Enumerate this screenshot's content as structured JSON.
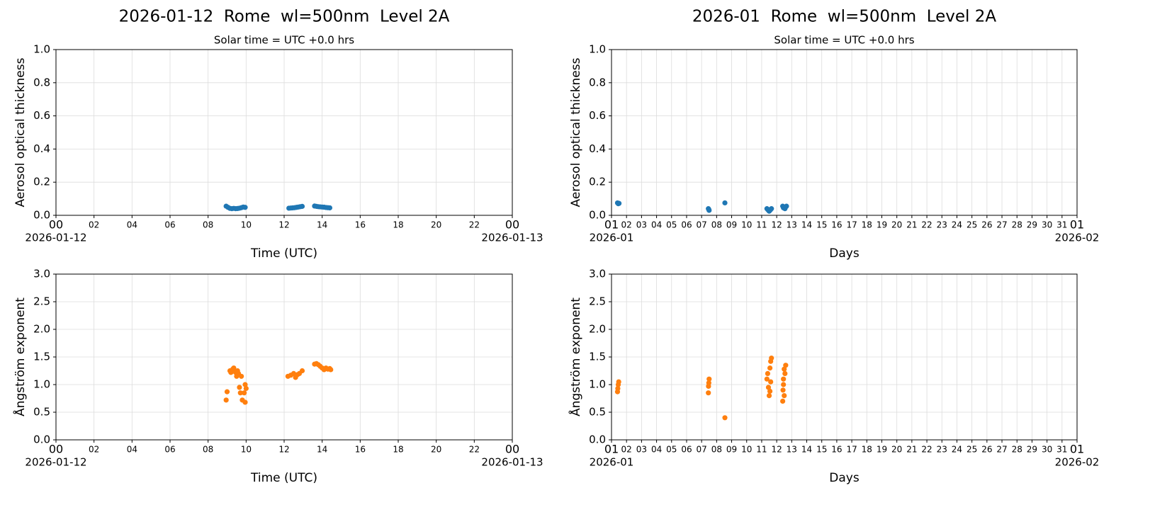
{
  "chart_data": [
    {
      "type": "scatter",
      "title": "2026-01-12  Rome  wl=500nm  Level 2A",
      "subtitle": "Solar time = UTC +0.0 hrs",
      "x_label": "Time (UTC)",
      "y_label": "Aerosol optical thickness",
      "xlim": [
        0,
        24
      ],
      "xticks": [
        {
          "value": 0,
          "label": "00"
        },
        {
          "value": 2,
          "label": "02"
        },
        {
          "value": 4,
          "label": "04"
        },
        {
          "value": 6,
          "label": "06"
        },
        {
          "value": 8,
          "label": "08"
        },
        10,
        12,
        14,
        16,
        18,
        20,
        22,
        {
          "value": 24,
          "label": "00"
        }
      ],
      "xdate_labels": [
        {
          "value": 0,
          "label": "2026-01-12"
        },
        {
          "value": 24,
          "label": "2026-01-13"
        }
      ],
      "ylim": [
        0,
        1
      ],
      "yticks": [
        {
          "value": 0,
          "label": "0.0"
        },
        0.2,
        0.4,
        0.6,
        0.8,
        {
          "value": 1,
          "label": "1.0"
        }
      ],
      "grid": true,
      "series": [
        {
          "color": "#1f77b4",
          "x": [
            8.95,
            9.05,
            9.15,
            9.25,
            9.35,
            9.45,
            9.55,
            9.65,
            9.75,
            9.85,
            9.95,
            12.25,
            12.35,
            12.45,
            12.55,
            12.65,
            12.75,
            12.85,
            12.95,
            13.6,
            13.7,
            13.8,
            13.9,
            14.0,
            14.1,
            14.2,
            14.3,
            14.4
          ],
          "values": [
            0.055,
            0.048,
            0.042,
            0.04,
            0.042,
            0.04,
            0.041,
            0.043,
            0.046,
            0.05,
            0.048,
            0.043,
            0.044,
            0.045,
            0.046,
            0.048,
            0.05,
            0.052,
            0.054,
            0.056,
            0.054,
            0.052,
            0.051,
            0.05,
            0.049,
            0.047,
            0.046,
            0.045
          ]
        }
      ]
    },
    {
      "type": "scatter",
      "title": "2026-01  Rome  wl=500nm  Level 2A",
      "subtitle": "Solar time = UTC +0.0 hrs",
      "x_label": "Days",
      "y_label": "Aerosol optical thickness",
      "xlim": [
        1,
        32
      ],
      "xticks": [
        {
          "value": 1,
          "label": "01"
        },
        {
          "value": 2,
          "label": "02"
        },
        {
          "value": 3,
          "label": "03"
        },
        {
          "value": 4,
          "label": "04"
        },
        {
          "value": 5,
          "label": "05"
        },
        {
          "value": 6,
          "label": "06"
        },
        {
          "value": 7,
          "label": "07"
        },
        {
          "value": 8,
          "label": "08"
        },
        {
          "value": 9,
          "label": "09"
        },
        10,
        11,
        12,
        13,
        14,
        15,
        16,
        17,
        18,
        19,
        20,
        21,
        22,
        23,
        24,
        25,
        26,
        27,
        28,
        29,
        30,
        31,
        {
          "value": 32,
          "label": "01"
        }
      ],
      "xdate_labels": [
        {
          "value": 1,
          "label": "2026-01"
        },
        {
          "value": 32,
          "label": "2026-02"
        }
      ],
      "ylim": [
        0,
        1
      ],
      "yticks": [
        {
          "value": 0,
          "label": "0.0"
        },
        0.2,
        0.4,
        0.6,
        0.8,
        {
          "value": 1,
          "label": "1.0"
        }
      ],
      "grid": true,
      "series": [
        {
          "color": "#1f77b4",
          "x": [
            1.4,
            1.45,
            1.5,
            7.45,
            7.5,
            7.48,
            8.55,
            11.35,
            11.4,
            11.45,
            11.5,
            11.55,
            11.6,
            11.65,
            12.4,
            12.45,
            12.5,
            12.55,
            12.6,
            12.65
          ],
          "values": [
            0.075,
            0.07,
            0.072,
            0.04,
            0.03,
            0.035,
            0.075,
            0.04,
            0.035,
            0.03,
            0.025,
            0.03,
            0.035,
            0.04,
            0.055,
            0.045,
            0.05,
            0.04,
            0.05,
            0.055
          ]
        }
      ]
    },
    {
      "type": "scatter",
      "x_label": "Time (UTC)",
      "y_label": "Ångström exponent",
      "xlim": [
        0,
        24
      ],
      "xticks": [
        {
          "value": 0,
          "label": "00"
        },
        {
          "value": 2,
          "label": "02"
        },
        {
          "value": 4,
          "label": "04"
        },
        {
          "value": 6,
          "label": "06"
        },
        {
          "value": 8,
          "label": "08"
        },
        10,
        12,
        14,
        16,
        18,
        20,
        22,
        {
          "value": 24,
          "label": "00"
        }
      ],
      "xdate_labels": [
        {
          "value": 0,
          "label": "2026-01-12"
        },
        {
          "value": 24,
          "label": "2026-01-13"
        }
      ],
      "ylim": [
        0,
        3
      ],
      "yticks": [
        {
          "value": 0,
          "label": "0.0"
        },
        0.5,
        {
          "value": 1,
          "label": "1.0"
        },
        1.5,
        {
          "value": 2,
          "label": "2.0"
        },
        2.5,
        {
          "value": 3,
          "label": "3.0"
        }
      ],
      "grid": true,
      "series": [
        {
          "color": "#ff7f0e",
          "x": [
            8.95,
            9.0,
            9.15,
            9.2,
            9.3,
            9.35,
            9.45,
            9.5,
            9.55,
            9.6,
            9.65,
            9.7,
            9.75,
            9.8,
            9.9,
            9.95,
            9.95,
            10.0,
            12.2,
            12.35,
            12.5,
            12.6,
            12.7,
            12.8,
            12.95,
            13.6,
            13.7,
            13.8,
            13.9,
            14.0,
            14.1,
            14.2,
            14.3,
            14.4,
            14.45
          ],
          "values": [
            0.72,
            0.87,
            1.25,
            1.22,
            1.28,
            1.3,
            1.22,
            1.15,
            1.25,
            1.2,
            0.95,
            0.85,
            1.15,
            0.72,
            0.85,
            0.68,
            1.0,
            0.93,
            1.15,
            1.17,
            1.2,
            1.13,
            1.18,
            1.2,
            1.25,
            1.37,
            1.38,
            1.36,
            1.33,
            1.3,
            1.27,
            1.3,
            1.28,
            1.29,
            1.27
          ]
        }
      ]
    },
    {
      "type": "scatter",
      "x_label": "Days",
      "y_label": "Ångström exponent",
      "xlim": [
        1,
        32
      ],
      "xticks": [
        {
          "value": 1,
          "label": "01"
        },
        {
          "value": 2,
          "label": "02"
        },
        {
          "value": 3,
          "label": "03"
        },
        {
          "value": 4,
          "label": "04"
        },
        {
          "value": 5,
          "label": "05"
        },
        {
          "value": 6,
          "label": "06"
        },
        {
          "value": 7,
          "label": "07"
        },
        {
          "value": 8,
          "label": "08"
        },
        {
          "value": 9,
          "label": "09"
        },
        10,
        11,
        12,
        13,
        14,
        15,
        16,
        17,
        18,
        19,
        20,
        21,
        22,
        23,
        24,
        25,
        26,
        27,
        28,
        29,
        30,
        31,
        {
          "value": 32,
          "label": "01"
        }
      ],
      "xdate_labels": [
        {
          "value": 1,
          "label": "2026-01"
        },
        {
          "value": 32,
          "label": "2026-02"
        }
      ],
      "ylim": [
        0,
        3
      ],
      "yticks": [
        {
          "value": 0,
          "label": "0.0"
        },
        0.5,
        {
          "value": 1,
          "label": "1.0"
        },
        1.5,
        {
          "value": 2,
          "label": "2.0"
        },
        2.5,
        {
          "value": 3,
          "label": "3.0"
        }
      ],
      "grid": true,
      "series": [
        {
          "color": "#ff7f0e",
          "x": [
            1.4,
            1.42,
            1.45,
            1.48,
            7.45,
            7.46,
            7.48,
            7.5,
            8.55,
            11.35,
            11.4,
            11.45,
            11.5,
            11.55,
            11.6,
            11.65,
            11.55,
            11.6,
            12.4,
            12.42,
            12.45,
            12.5,
            12.55,
            12.6,
            12.45,
            12.5
          ],
          "values": [
            0.87,
            0.93,
            1.0,
            1.05,
            0.85,
            0.97,
            1.03,
            1.1,
            0.4,
            1.1,
            1.2,
            0.95,
            0.8,
            1.3,
            1.42,
            1.48,
            0.88,
            1.05,
            0.7,
            0.9,
            1.1,
            1.28,
            1.2,
            1.35,
            1.0,
            0.8
          ]
        }
      ]
    }
  ]
}
